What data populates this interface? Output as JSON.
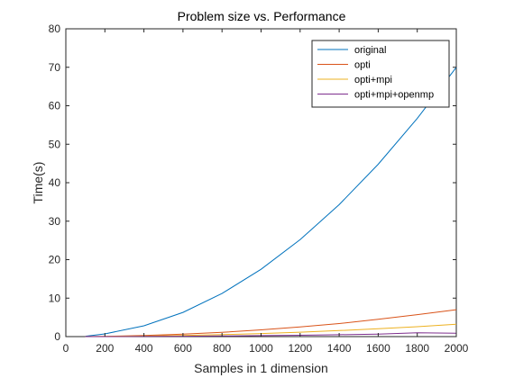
{
  "chart_data": {
    "type": "line",
    "title": "Problem size vs. Performance",
    "xlabel": "Samples in 1 dimension",
    "ylabel": "Time(s)",
    "xlim": [
      0,
      2000
    ],
    "ylim": [
      0,
      80
    ],
    "xticks": [
      0,
      200,
      400,
      600,
      800,
      1000,
      1200,
      1400,
      1600,
      1800,
      2000
    ],
    "yticks": [
      0,
      10,
      20,
      30,
      40,
      50,
      60,
      70,
      80
    ],
    "grid": false,
    "legend_position": "top-right",
    "x": [
      100,
      200,
      400,
      600,
      800,
      1000,
      1200,
      1400,
      1600,
      1800,
      2000
    ],
    "series": [
      {
        "name": "original",
        "color": "#0072BD",
        "values": [
          0.1,
          0.7,
          2.8,
          6.3,
          11.2,
          17.5,
          25.2,
          34.3,
          44.8,
          56.7,
          70.0
        ]
      },
      {
        "name": "opti",
        "color": "#D95319",
        "values": [
          0.02,
          0.07,
          0.28,
          0.63,
          1.1,
          1.75,
          2.5,
          3.4,
          4.5,
          5.7,
          7.0
        ]
      },
      {
        "name": "opti+mpi",
        "color": "#EDB120",
        "values": [
          0.01,
          0.03,
          0.13,
          0.29,
          0.51,
          0.8,
          1.15,
          1.56,
          2.04,
          2.58,
          3.2
        ]
      },
      {
        "name": "opti+mpi+openmp",
        "color": "#7E2F8E",
        "values": [
          0.0,
          0.01,
          0.04,
          0.1,
          0.16,
          0.25,
          0.36,
          0.5,
          0.65,
          1.0,
          0.9
        ]
      }
    ]
  }
}
